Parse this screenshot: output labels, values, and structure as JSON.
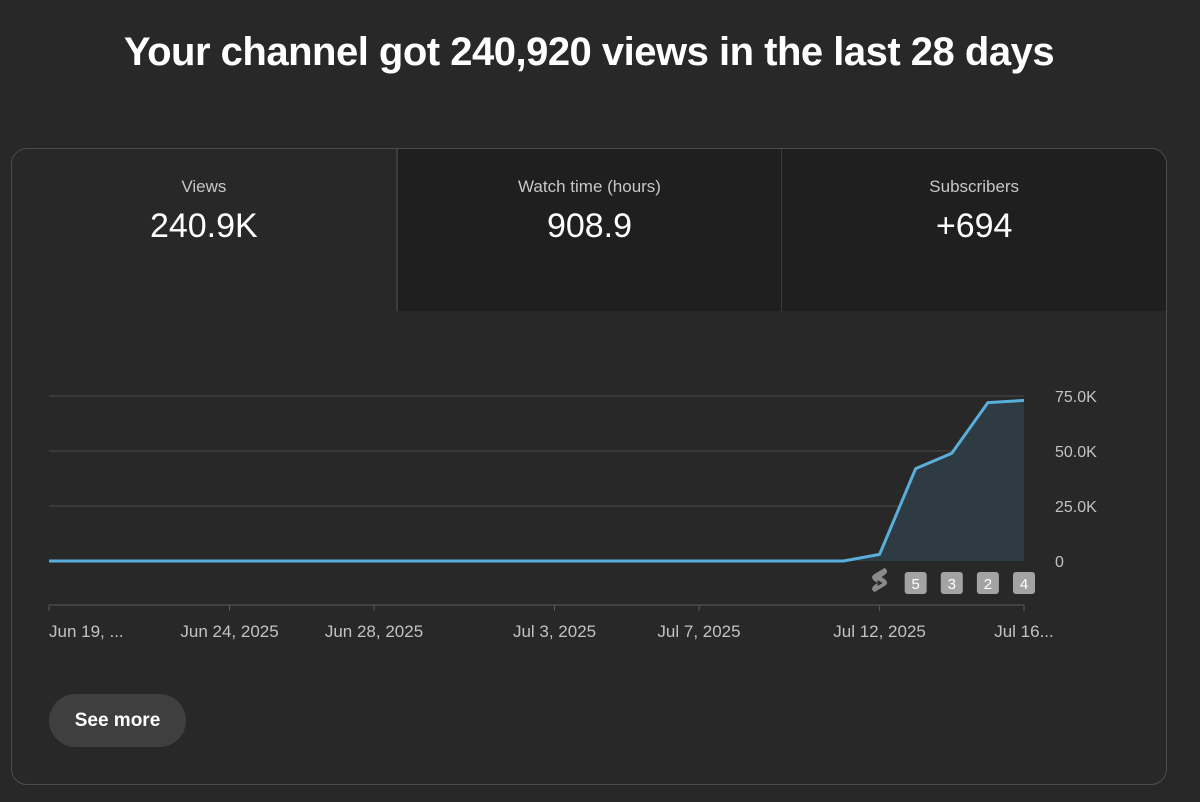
{
  "headline": "Your channel got 240,920 views in the last 28 days",
  "tabs": [
    {
      "label": "Views",
      "value": "240.9K"
    },
    {
      "label": "Watch time (hours)",
      "value": "908.9"
    },
    {
      "label": "Subscribers",
      "value": "+694"
    }
  ],
  "colors": {
    "line": "#5aaedb",
    "area": "#2f3b42",
    "grid": "#4a4a4a",
    "axis_text": "#c2c2c2"
  },
  "chart_data": {
    "type": "area",
    "series": [
      {
        "name": "Views",
        "values": [
          0,
          0,
          0,
          0,
          0,
          0,
          0,
          0,
          0,
          0,
          0,
          0,
          0,
          0,
          0,
          0,
          0,
          0,
          0,
          0,
          0,
          0,
          0,
          3000,
          42000,
          49000,
          72000,
          73000
        ]
      }
    ],
    "x_tick_labels": [
      {
        "label": "Jun 19, ...",
        "index": 0
      },
      {
        "label": "Jun 24, 2025",
        "index": 5
      },
      {
        "label": "Jun 28, 2025",
        "index": 9
      },
      {
        "label": "Jul 3, 2025",
        "index": 14
      },
      {
        "label": "Jul 7, 2025",
        "index": 18
      },
      {
        "label": "Jul 12, 2025",
        "index": 23
      },
      {
        "label": "Jul 16...",
        "index": 27
      }
    ],
    "y_ticks": [
      {
        "value": 0,
        "label": "0"
      },
      {
        "value": 25000,
        "label": "25.0K"
      },
      {
        "value": 50000,
        "label": "50.0K"
      },
      {
        "value": 75000,
        "label": "75.0K"
      }
    ],
    "ylim": [
      0,
      75000
    ],
    "markers": [
      {
        "index": 23,
        "kind": "shorts-icon",
        "label": ""
      },
      {
        "index": 24,
        "kind": "count",
        "label": "5"
      },
      {
        "index": 25,
        "kind": "count",
        "label": "3"
      },
      {
        "index": 26,
        "kind": "count",
        "label": "2"
      },
      {
        "index": 27,
        "kind": "count",
        "label": "4"
      }
    ]
  },
  "see_more_label": "See more"
}
